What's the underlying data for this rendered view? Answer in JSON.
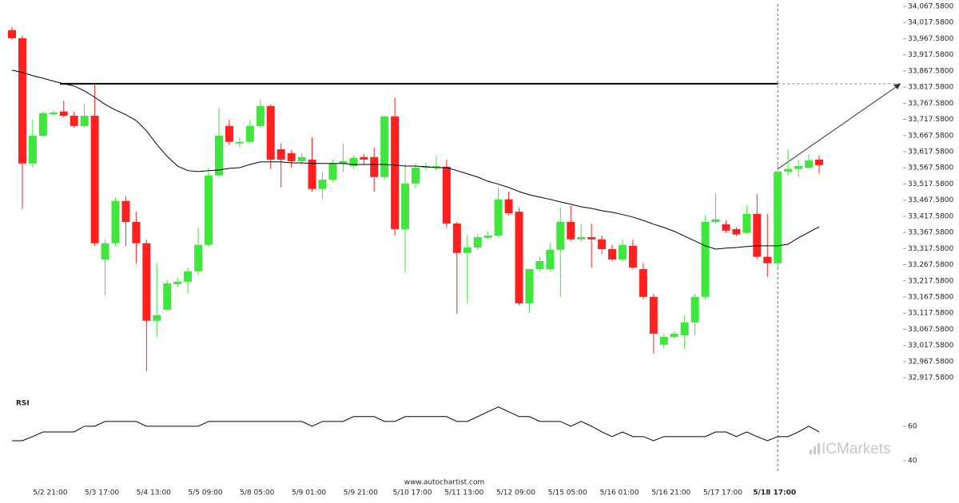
{
  "chart_data": [
    {
      "type": "candlestick",
      "categories": [
        null,
        null,
        null,
        null,
        "5/2 21:00",
        null,
        null,
        null,
        null,
        "5/3 17:00",
        null,
        null,
        null,
        null,
        "5/4 13:00",
        null,
        null,
        null,
        null,
        "5/5 09:00",
        null,
        null,
        null,
        null,
        "5/8 05:00",
        null,
        null,
        null,
        null,
        "5/9 01:00",
        null,
        null,
        null,
        null,
        "5/9 21:00",
        null,
        null,
        null,
        null,
        "5/10 17:00",
        null,
        null,
        null,
        null,
        "5/11 13:00",
        null,
        null,
        null,
        null,
        "5/12 09:00",
        null,
        null,
        null,
        null,
        "5/15 05:00",
        null,
        null,
        null,
        null,
        "5/16 01:00",
        null,
        null,
        null,
        null,
        "5/16 21:00",
        null,
        null,
        null,
        null,
        "5/17 17:00",
        null,
        null,
        null,
        null,
        "5/18 17:00",
        null,
        null,
        null,
        null
      ],
      "open": [
        33994,
        33969,
        33581,
        33667,
        33734,
        33742,
        33729,
        33697,
        33729,
        33284,
        33334,
        33465,
        33400,
        33334,
        33094,
        33128,
        33207,
        33215,
        33247,
        33329,
        33544,
        33697,
        33643,
        33648,
        33697,
        33759,
        33625,
        33613,
        33588,
        33593,
        33502,
        33531,
        33581,
        33573,
        33601,
        33601,
        33539,
        33727,
        33378,
        33519,
        33568,
        33568,
        33571,
        33395,
        33304,
        33321,
        33351,
        33358,
        33470,
        33432,
        33148,
        33254,
        33254,
        33314,
        33400,
        33346,
        33353,
        33346,
        33316,
        33284,
        33326,
        33254,
        33168,
        33020,
        33044,
        33049,
        33089,
        33168,
        33400,
        33393,
        33378,
        33366,
        33425,
        33292,
        33272,
        33556,
        33564,
        33568,
        33593
      ],
      "high": [
        34004,
        33977,
        33717,
        33742,
        33744,
        33776,
        33742,
        33766,
        33828,
        33346,
        33475,
        33479,
        33432,
        33346,
        33272,
        33222,
        33227,
        33259,
        33383,
        33568,
        33754,
        33717,
        33662,
        33717,
        33779,
        33764,
        33643,
        33623,
        33613,
        33662,
        33556,
        33593,
        33643,
        33606,
        33611,
        33630,
        33729,
        33786,
        33581,
        33581,
        33583,
        33606,
        33593,
        33400,
        33358,
        33363,
        33371,
        33507,
        33494,
        33445,
        33254,
        33292,
        33334,
        33445,
        33450,
        33395,
        33395,
        33358,
        33329,
        33346,
        33346,
        33272,
        33178,
        33054,
        33062,
        33111,
        33178,
        33420,
        33489,
        33405,
        33383,
        33450,
        33487,
        33425,
        33581,
        33625,
        33593,
        33608,
        33606
      ],
      "low": [
        33964,
        33440,
        33568,
        33662,
        33729,
        33724,
        33692,
        33692,
        33326,
        33173,
        33326,
        33326,
        33272,
        32938,
        33044,
        33123,
        33197,
        33178,
        33235,
        33321,
        33539,
        33638,
        33630,
        33643,
        33692,
        33564,
        33507,
        33568,
        33576,
        33494,
        33470,
        33524,
        33556,
        33564,
        33576,
        33494,
        33531,
        33358,
        33242,
        33504,
        33561,
        33559,
        33383,
        33116,
        33148,
        33314,
        33346,
        33351,
        33420,
        33143,
        33118,
        33247,
        33247,
        33168,
        33341,
        33341,
        33259,
        33301,
        33279,
        33277,
        33252,
        33160,
        32992,
        33010,
        33037,
        33007,
        33049,
        33160,
        33395,
        33366,
        33356,
        33361,
        33284,
        33230,
        33259,
        33544,
        33539,
        33564,
        33549
      ],
      "close": [
        33969,
        33581,
        33667,
        33737,
        33739,
        33729,
        33697,
        33729,
        33334,
        33334,
        33465,
        33400,
        33334,
        33094,
        33111,
        33210,
        33215,
        33247,
        33329,
        33544,
        33667,
        33648,
        33648,
        33697,
        33759,
        33593,
        33593,
        33588,
        33601,
        33502,
        33531,
        33581,
        33588,
        33598,
        33593,
        33539,
        33727,
        33378,
        33519,
        33568,
        33573,
        33573,
        33395,
        33304,
        33321,
        33353,
        33358,
        33470,
        33427,
        33148,
        33254,
        33279,
        33314,
        33400,
        33346,
        33353,
        33346,
        33316,
        33284,
        33329,
        33259,
        33168,
        33054,
        33044,
        33054,
        33089,
        33168,
        33400,
        33408,
        33373,
        33361,
        33425,
        33292,
        33272,
        33556,
        33564,
        33573,
        33591,
        33576
      ],
      "up_color": "#3ee63e",
      "down_color": "#ff2020",
      "ma": {
        "color": "#000000",
        "values": [
          33870,
          33863,
          33853,
          33845,
          33836,
          33828,
          33821,
          33806,
          33786,
          33764,
          33747,
          33732,
          33714,
          33682,
          33640,
          33603,
          33573,
          33559,
          33556,
          33559,
          33561,
          33566,
          33568,
          33578,
          33586,
          33586,
          33586,
          33583,
          33583,
          33581,
          33581,
          33581,
          33581,
          33578,
          33578,
          33578,
          33578,
          33576,
          33573,
          33573,
          33571,
          33568,
          33568,
          33559,
          33549,
          33539,
          33526,
          33517,
          33507,
          33494,
          33484,
          33477,
          33470,
          33462,
          33455,
          33447,
          33442,
          33435,
          33430,
          33423,
          33415,
          33405,
          33393,
          33383,
          33371,
          33356,
          33341,
          33326,
          33316,
          33319,
          33321,
          33324,
          33326,
          33326,
          33326,
          33331,
          33351,
          33368,
          33385
        ]
      },
      "resistance": 33828,
      "ylim": [
        32875.8,
        34067.58
      ],
      "yticks": [
        {
          "value": 32917.58,
          "label": "32,917.5800"
        },
        {
          "value": 32967.58,
          "label": "32,967.5800"
        },
        {
          "value": 33017.58,
          "label": "33,017.5800"
        },
        {
          "value": 33067.58,
          "label": "33,067.5800"
        },
        {
          "value": 33117.58,
          "label": "33,117.5800"
        },
        {
          "value": 33167.58,
          "label": "33,167.5800"
        },
        {
          "value": 33217.58,
          "label": "33,217.5800"
        },
        {
          "value": 33267.58,
          "label": "33,267.5800"
        },
        {
          "value": 33317.58,
          "label": "33,317.5800"
        },
        {
          "value": 33367.58,
          "label": "33,367.5800"
        },
        {
          "value": 33417.58,
          "label": "33,417.5800"
        },
        {
          "value": 33467.58,
          "label": "33,467.5800"
        },
        {
          "value": 33517.58,
          "label": "33,517.5800"
        },
        {
          "value": 33567.58,
          "label": "33,567.5800"
        },
        {
          "value": 33617.58,
          "label": "33,617.5800"
        },
        {
          "value": 33667.58,
          "label": "33,667.5800"
        },
        {
          "value": 33717.58,
          "label": "33,717.5800"
        },
        {
          "value": 33767.58,
          "label": "33,767.5800"
        },
        {
          "value": 33817.58,
          "label": "33,817.5800"
        },
        {
          "value": 33867.58,
          "label": "33,867.5800"
        },
        {
          "value": 33917.58,
          "label": "33,917.5800"
        },
        {
          "value": 33967.58,
          "label": "33,967.5800"
        },
        {
          "value": 34017.58,
          "label": "34,017.5800"
        },
        {
          "value": 34067.58,
          "label": "34,067.5800"
        }
      ]
    },
    {
      "type": "line",
      "title": "RSI",
      "color": "#000000",
      "values": [
        51.6,
        51.6,
        54,
        56.7,
        56.7,
        56.7,
        56.7,
        60,
        60,
        62.8,
        62.8,
        62.8,
        62.8,
        60,
        60,
        60,
        60,
        60,
        60,
        62.8,
        62.8,
        62.8,
        62.8,
        62.8,
        62.8,
        62.8,
        62.8,
        62.8,
        62.8,
        60,
        62.8,
        62.8,
        62.8,
        65.6,
        65.6,
        65.6,
        62.8,
        62.8,
        65.6,
        65.6,
        65.6,
        65.6,
        65.6,
        62.8,
        62.8,
        65.6,
        68.4,
        71.2,
        68.4,
        65.6,
        65.6,
        62.8,
        62.8,
        62.8,
        60,
        62.8,
        60,
        56.7,
        54,
        56.7,
        54,
        54,
        51.6,
        54,
        54,
        54,
        54,
        54,
        56.7,
        56.7,
        54,
        56.7,
        54,
        51.6,
        54,
        54,
        56.7,
        60,
        56.7
      ],
      "ylim": [
        34,
        78
      ],
      "yticks": [
        40,
        60
      ]
    }
  ],
  "source": "www.autochartist.com",
  "watermark": "ICMarkets"
}
